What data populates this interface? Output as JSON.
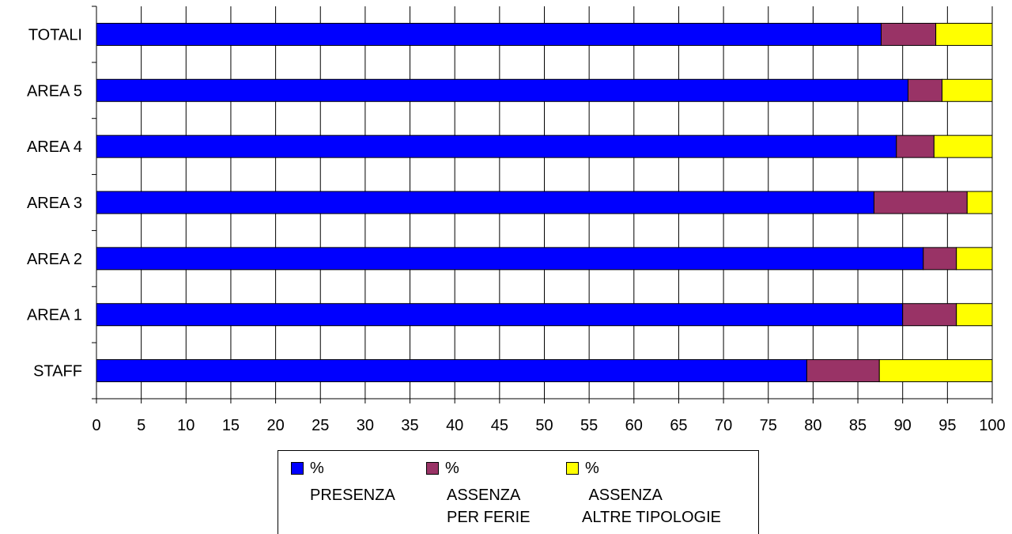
{
  "chart_data": {
    "type": "bar",
    "orientation": "horizontal",
    "stacked": true,
    "categories": [
      "TOTALI",
      "AREA 5",
      "AREA 4",
      "AREA 3",
      "AREA 2",
      "AREA 1",
      "STAFF"
    ],
    "series": [
      {
        "name": "% PRESENZA",
        "color": "#0000ff",
        "values": [
          87.6,
          90.6,
          89.3,
          86.8,
          92.3,
          90.0,
          79.3
        ]
      },
      {
        "name": "% ASSENZA PER FERIE",
        "color": "#993366",
        "values": [
          6.1,
          3.8,
          4.2,
          10.4,
          3.7,
          6.0,
          8.1
        ]
      },
      {
        "name": "% ASSENZA ALTRE TIPOLOGIE",
        "color": "#ffff00",
        "values": [
          6.3,
          5.6,
          6.5,
          2.8,
          4.0,
          4.0,
          12.6
        ]
      }
    ],
    "xlim": [
      0,
      100
    ],
    "xticks": [
      "0",
      "5",
      "10",
      "15",
      "20",
      "25",
      "30",
      "35",
      "40",
      "45",
      "50",
      "55",
      "60",
      "65",
      "70",
      "75",
      "80",
      "85",
      "90",
      "95",
      "100"
    ],
    "grid": true,
    "legend_position": "bottom"
  },
  "legend": {
    "entries": [
      {
        "line1": "%",
        "line2": "PRESENZA",
        "line3": ""
      },
      {
        "line1": "%",
        "line2": "ASSENZA",
        "line3": "PER FERIE"
      },
      {
        "line1": "%",
        "line2": " ASSENZA",
        "line3": "ALTRE TIPOLOGIE"
      }
    ]
  }
}
